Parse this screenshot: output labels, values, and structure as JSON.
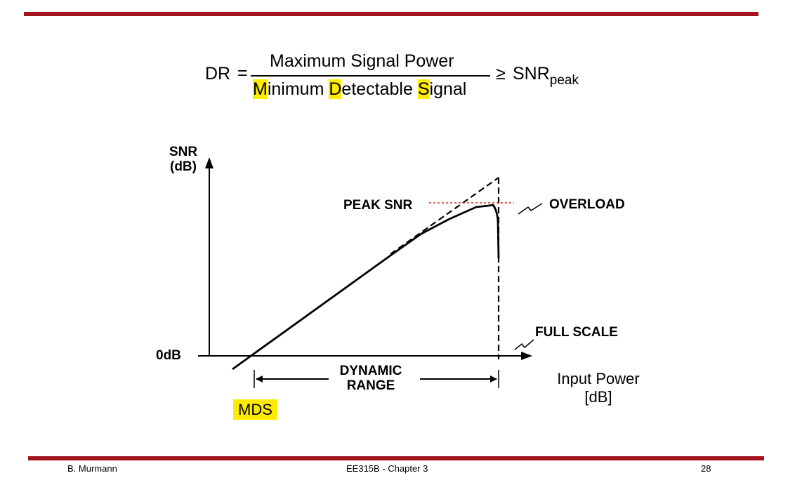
{
  "formula": {
    "lhs": "DR",
    "equals": "=",
    "numerator": "Maximum Signal Power",
    "denominator": {
      "w1_first": "M",
      "w1_rest": "inimum",
      "w2_first": "D",
      "w2_rest": "etectable",
      "w3_first": "S",
      "w3_rest": "ignal"
    },
    "relation": "≥",
    "rhs_main": "SNR",
    "rhs_sub": "peak",
    "highlight_color": "#ffeb00"
  },
  "diagram": {
    "y_axis_label_line1": "SNR",
    "y_axis_label_line2": "(dB)",
    "zero_label": "0dB",
    "x_axis_label_line1": "Input Power",
    "x_axis_label_line2": "[dB]",
    "peak_snr_label": "PEAK SNR",
    "overload_label": "OVERLOAD",
    "full_scale_label": "FULL SCALE",
    "dynamic_range_line1": "DYNAMIC",
    "dynamic_range_line2": "RANGE",
    "mds_label": "MDS",
    "peak_line_color": "#e0261f"
  },
  "footer": {
    "author": "B. Murmann",
    "course": "EE315B - Chapter 3",
    "page": "28"
  },
  "theme": {
    "rule_color": "#a3141c"
  }
}
